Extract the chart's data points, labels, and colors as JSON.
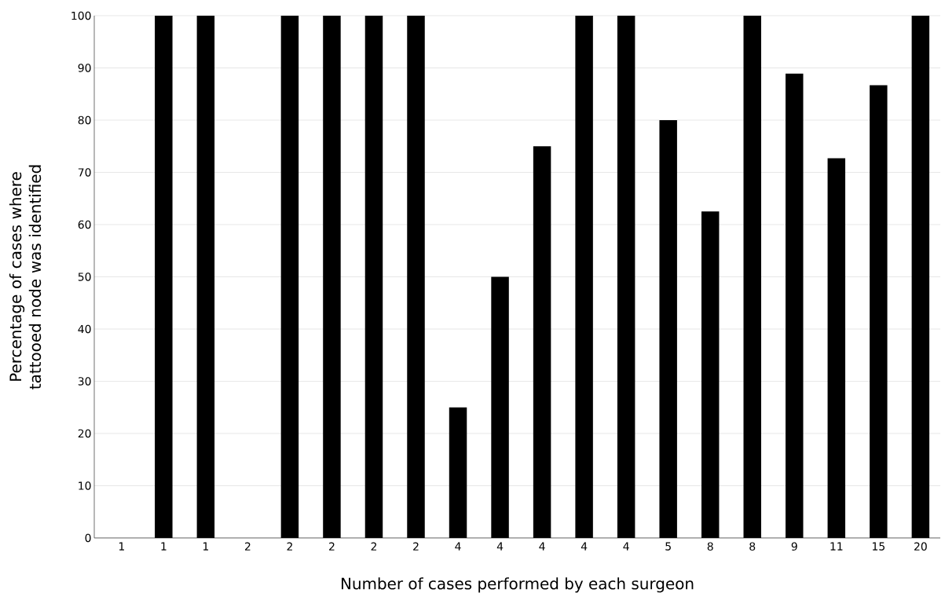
{
  "chart_data": {
    "type": "bar",
    "xlabel": "Number of cases performed by each surgeon",
    "ylabel": "Percentage of cases where tattooed node was identified",
    "categories": [
      "1",
      "1",
      "1",
      "2",
      "2",
      "2",
      "2",
      "2",
      "4",
      "4",
      "4",
      "4",
      "4",
      "5",
      "8",
      "8",
      "9",
      "11",
      "15",
      "20"
    ],
    "values": [
      0,
      100,
      100,
      0,
      100,
      100,
      100,
      100,
      25,
      50,
      75,
      100,
      100,
      80,
      62.5,
      100,
      88.9,
      72.7,
      86.7,
      100
    ],
    "color": "#000000",
    "ylim": [
      0,
      100
    ],
    "yticks": [
      0,
      10,
      20,
      30,
      40,
      50,
      60,
      70,
      80,
      90,
      100
    ],
    "grid": "y"
  }
}
